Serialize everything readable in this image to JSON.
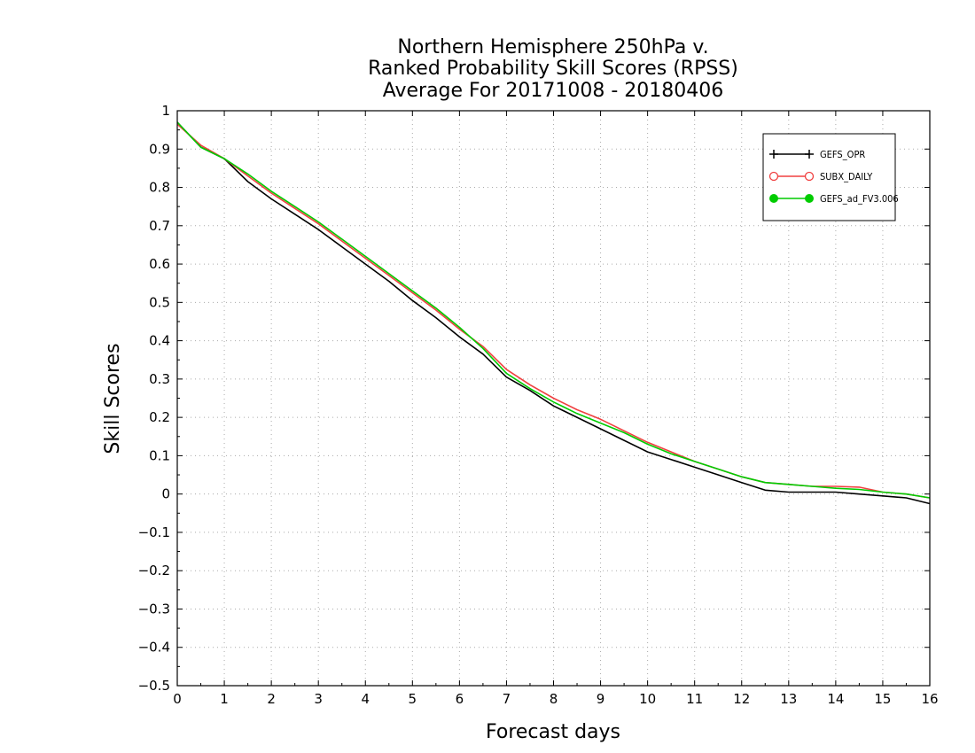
{
  "chart_data": {
    "type": "line",
    "title_lines": [
      "Northern Hemisphere 250hPa v.",
      "Ranked Probability Skill Scores (RPSS)",
      "Average For 20171008 - 20180406"
    ],
    "xlabel": "Forecast days",
    "ylabel": "Skill Scores",
    "xlim": [
      0,
      16
    ],
    "ylim": [
      -0.5,
      1
    ],
    "x_ticks": [
      0,
      1,
      2,
      3,
      4,
      5,
      6,
      7,
      8,
      9,
      10,
      11,
      12,
      13,
      14,
      15,
      16
    ],
    "y_ticks": [
      -0.5,
      -0.4,
      -0.3,
      -0.2,
      -0.1,
      0,
      0.1,
      0.2,
      0.3,
      0.4,
      0.5,
      0.6,
      0.7,
      0.8,
      0.9,
      1
    ],
    "grid": true,
    "legend_position": "top-right",
    "x": [
      0,
      0.5,
      1,
      1.5,
      2,
      2.5,
      3,
      3.5,
      4,
      4.5,
      5,
      5.5,
      6,
      6.5,
      7,
      7.5,
      8,
      8.5,
      9,
      9.5,
      10,
      10.5,
      11,
      11.5,
      12,
      12.5,
      13,
      13.5,
      14,
      14.5,
      15,
      15.5,
      16
    ],
    "series": [
      {
        "name": "GEFS_OPR",
        "color": "#000000",
        "marker": "plus",
        "values": [
          0.97,
          0.905,
          0.875,
          0.815,
          0.77,
          0.73,
          0.69,
          0.645,
          0.6,
          0.555,
          0.505,
          0.46,
          0.41,
          0.365,
          0.305,
          0.27,
          0.23,
          0.2,
          0.17,
          0.14,
          0.11,
          0.09,
          0.07,
          0.05,
          0.03,
          0.01,
          0.005,
          0.005,
          0.005,
          0.0,
          -0.005,
          -0.01,
          -0.025
        ]
      },
      {
        "name": "SUBX_DAILY",
        "color": "#f04040",
        "marker": "open-circle",
        "values": [
          0.965,
          0.91,
          0.875,
          0.83,
          0.785,
          0.745,
          0.705,
          0.66,
          0.615,
          0.57,
          0.525,
          0.48,
          0.43,
          0.385,
          0.325,
          0.285,
          0.25,
          0.22,
          0.195,
          0.165,
          0.135,
          0.11,
          0.085,
          0.065,
          0.045,
          0.03,
          0.025,
          0.02,
          0.02,
          0.018,
          0.005,
          0.0,
          -0.01
        ]
      },
      {
        "name": "GEFS_ad_FV3.006",
        "color": "#00cc00",
        "marker": "filled-circle",
        "values": [
          0.97,
          0.905,
          0.875,
          0.835,
          0.79,
          0.75,
          0.71,
          0.665,
          0.62,
          0.575,
          0.53,
          0.485,
          0.435,
          0.38,
          0.315,
          0.275,
          0.24,
          0.21,
          0.185,
          0.16,
          0.13,
          0.105,
          0.085,
          0.065,
          0.045,
          0.03,
          0.025,
          0.02,
          0.015,
          0.012,
          0.005,
          0.0,
          -0.01
        ]
      }
    ]
  }
}
